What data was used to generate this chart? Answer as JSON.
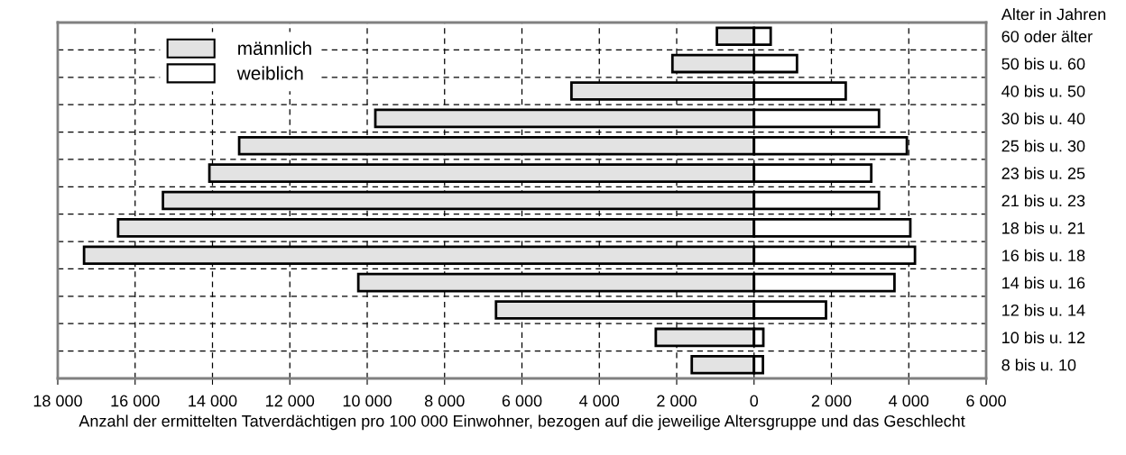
{
  "chart_data": {
    "type": "bar",
    "orientation": "horizontal",
    "categories": [
      "60 oder älter",
      "50 bis u. 60",
      "40 bis u. 50",
      "30 bis u. 40",
      "25 bis u. 30",
      "23 bis u. 25",
      "21 bis u. 23",
      "18 bis u. 21",
      "16 bis u. 18",
      "14 bis u. 16",
      "12 bis u. 14",
      "10 bis u. 12",
      "8 bis u. 10"
    ],
    "series": [
      {
        "name": "männlich",
        "color": "#e3e3e3",
        "values": [
          -960,
          -2110,
          -4720,
          -9790,
          -13310,
          -14080,
          -15280,
          -16440,
          -17320,
          -10230,
          -6670,
          -2540,
          -1610
        ]
      },
      {
        "name": "weiblich",
        "color": "#ffffff",
        "values": [
          430,
          1110,
          2370,
          3230,
          3950,
          3030,
          3230,
          4040,
          4160,
          3630,
          1860,
          240,
          230
        ]
      }
    ],
    "xlim": [
      -18000,
      6000
    ],
    "xticks": [
      {
        "value": -18000,
        "label": "18 000"
      },
      {
        "value": -16000,
        "label": "16 000"
      },
      {
        "value": -14000,
        "label": "14 000"
      },
      {
        "value": -12000,
        "label": "12 000"
      },
      {
        "value": -10000,
        "label": "10 000"
      },
      {
        "value": -8000,
        "label": "8 000"
      },
      {
        "value": -6000,
        "label": "6 000"
      },
      {
        "value": -4000,
        "label": "4 000"
      },
      {
        "value": -2000,
        "label": "2 000"
      },
      0,
      {
        "value": 2000,
        "label": "2 000"
      },
      {
        "value": 4000,
        "label": "4 000"
      },
      {
        "value": 6000,
        "label": "6 000"
      }
    ],
    "xlabel": "Anzahl der ermittelten Tatverdächtigen pro 100 000 Einwohner, bezogen auf die jeweilige Altersgruppe und das Geschlecht",
    "ylabel": "Alter in Jahren",
    "stacked": true,
    "grid": true,
    "line_style": "dashed",
    "legend": "top left"
  }
}
